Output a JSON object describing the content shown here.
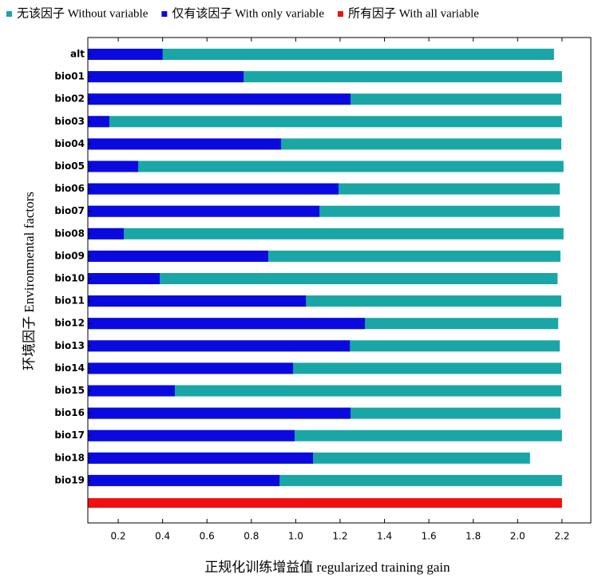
{
  "chart_data": {
    "type": "bar",
    "orientation": "horizontal",
    "xlabel": "正规化训练增益值 regularized training gain",
    "ylabel": "环境因子 Environmental factors",
    "categories": [
      "alt",
      "bio01",
      "bio02",
      "bio03",
      "bio04",
      "bio05",
      "bio06",
      "bio07",
      "bio08",
      "bio09",
      "bio10",
      "bio11",
      "bio12",
      "bio13",
      "bio14",
      "bio15",
      "bio16",
      "bio17",
      "bio18",
      "bio19",
      null
    ],
    "series": [
      {
        "name": "无该因子 Without variable",
        "color": "#1aa6a6",
        "values": [
          2.164,
          2.2,
          2.197,
          2.2,
          2.197,
          2.207,
          2.19,
          2.19,
          2.207,
          2.193,
          2.18,
          2.197,
          2.183,
          2.19,
          2.197,
          2.197,
          2.193,
          2.2,
          2.056,
          2.2,
          null
        ]
      },
      {
        "name": "仅有该因子 With only variable",
        "color": "#0a0ae0",
        "values": [
          0.4,
          0.765,
          1.247,
          0.16,
          0.934,
          0.29,
          1.193,
          1.107,
          0.225,
          0.876,
          0.387,
          1.046,
          1.312,
          1.244,
          0.988,
          0.455,
          1.247,
          0.995,
          1.078,
          0.927,
          null
        ]
      },
      {
        "name": "所有因子 With all variable",
        "color": "#f01010",
        "values": [
          null,
          null,
          null,
          null,
          null,
          null,
          null,
          null,
          null,
          null,
          null,
          null,
          null,
          null,
          null,
          null,
          null,
          null,
          null,
          null,
          2.2
        ]
      }
    ],
    "xlim": [
      0.063,
      2.33
    ],
    "xticks": [
      0.2,
      0.4,
      0.6,
      0.8,
      {
        "value": 1,
        "label": "1.0"
      },
      1.2,
      1.4,
      1.6,
      1.8,
      {
        "value": 2,
        "label": "2.0"
      },
      2.2
    ],
    "legend": "top"
  }
}
